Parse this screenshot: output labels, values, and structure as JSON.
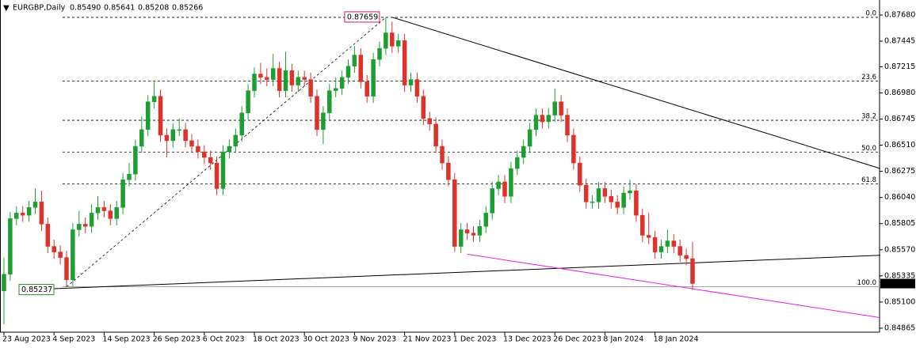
{
  "header": {
    "symbol": "EURGBP,Daily",
    "ohlc": [
      "0.85490",
      "0.85641",
      "0.85208",
      "0.85266"
    ]
  },
  "chart_data": {
    "type": "candlestick",
    "categories": [
      "23 Aug 2023",
      null,
      null,
      null,
      null,
      null,
      null,
      null,
      "4 Sep 2023",
      null,
      null,
      null,
      null,
      null,
      null,
      null,
      "14 Sep 2023",
      null,
      null,
      null,
      null,
      null,
      null,
      null,
      "26 Sep 2023",
      null,
      null,
      null,
      null,
      null,
      null,
      null,
      "6 Oct 2023",
      null,
      null,
      null,
      null,
      null,
      null,
      null,
      "18 Oct 2023",
      null,
      null,
      null,
      null,
      null,
      null,
      null,
      "30 Oct 2023",
      null,
      null,
      null,
      null,
      null,
      null,
      null,
      "9 Nov 2023",
      null,
      null,
      null,
      null,
      null,
      null,
      null,
      "21 Nov 2023",
      null,
      null,
      null,
      null,
      null,
      null,
      null,
      "1 Dec 2023",
      null,
      null,
      null,
      null,
      null,
      null,
      null,
      "13 Dec 2023",
      null,
      null,
      null,
      null,
      null,
      null,
      null,
      "26 Dec 2023",
      null,
      null,
      null,
      null,
      null,
      null,
      null,
      "8 Jan 2024",
      null,
      null,
      null,
      null,
      null,
      null,
      null,
      "18 Jan 2024",
      null,
      null,
      null,
      null,
      null,
      null
    ],
    "open": [
      0.852,
      0.8535,
      0.8585,
      0.859,
      0.8588,
      0.8595,
      0.86,
      0.858,
      0.856,
      0.8555,
      0.855,
      0.853,
      0.8575,
      0.858,
      0.8578,
      0.859,
      0.8595,
      0.8592,
      0.8585,
      0.8595,
      0.862,
      0.8625,
      0.865,
      0.8665,
      0.869,
      0.8695,
      0.866,
      0.8655,
      0.8665,
      0.8665,
      0.8655,
      0.865,
      0.8645,
      0.864,
      0.8635,
      0.8612,
      0.8645,
      0.865,
      0.866,
      0.868,
      0.87,
      0.8715,
      0.8712,
      0.871,
      0.872,
      0.87,
      0.8718,
      0.8705,
      0.8712,
      0.871,
      0.8695,
      0.8665,
      0.868,
      0.87,
      0.8702,
      0.8712,
      0.8722,
      0.8732,
      0.8708,
      0.8695,
      0.8728,
      0.8738,
      0.8752,
      0.874,
      0.8745,
      0.8705,
      0.871,
      0.8695,
      0.8675,
      0.867,
      0.865,
      0.8635,
      0.862,
      0.856,
      0.8575,
      0.8572,
      0.857,
      0.8578,
      0.859,
      0.8612,
      0.8618,
      0.8605,
      0.863,
      0.864,
      0.865,
      0.8665,
      0.8678,
      0.8672,
      0.8678,
      0.869,
      0.8678,
      0.866,
      0.8635,
      0.8615,
      0.86,
      0.86,
      0.8612,
      0.8605,
      0.86,
      0.8595,
      0.8608,
      0.861,
      0.8588,
      0.857,
      0.8568,
      0.8555,
      0.856,
      0.8565,
      0.856,
      0.8552,
      0.8549
    ],
    "high": [
      0.855,
      0.8591,
      0.8596,
      0.8596,
      0.8601,
      0.8612,
      0.861,
      0.8586,
      0.8566,
      0.8561,
      0.8556,
      0.8581,
      0.8592,
      0.8586,
      0.8598,
      0.8605,
      0.8601,
      0.8598,
      0.8601,
      0.8626,
      0.8635,
      0.8656,
      0.8677,
      0.8696,
      0.8708,
      0.8701,
      0.8666,
      0.8671,
      0.8675,
      0.8671,
      0.8661,
      0.8656,
      0.8651,
      0.8646,
      0.8641,
      0.8651,
      0.8656,
      0.8666,
      0.8686,
      0.8706,
      0.8721,
      0.8725,
      0.872,
      0.8733,
      0.8726,
      0.8735,
      0.8724,
      0.8718,
      0.8718,
      0.8716,
      0.8701,
      0.8686,
      0.8706,
      0.8712,
      0.8718,
      0.8728,
      0.874,
      0.8738,
      0.8714,
      0.8734,
      0.8744,
      0.87659,
      0.8762,
      0.8751,
      0.8751,
      0.8716,
      0.8716,
      0.8701,
      0.8681,
      0.8676,
      0.8656,
      0.8641,
      0.8626,
      0.8581,
      0.8581,
      0.8578,
      0.8584,
      0.8596,
      0.8618,
      0.8624,
      0.8624,
      0.8636,
      0.8646,
      0.8656,
      0.8671,
      0.8684,
      0.8684,
      0.8684,
      0.8702,
      0.8696,
      0.8684,
      0.8666,
      0.8641,
      0.8621,
      0.8606,
      0.8618,
      0.8618,
      0.8611,
      0.8606,
      0.8614,
      0.862,
      0.8616,
      0.8594,
      0.859,
      0.8574,
      0.8566,
      0.8575,
      0.8571,
      0.8566,
      0.8558,
      0.85641
    ],
    "low": [
      0.849,
      0.8529,
      0.8579,
      0.8582,
      0.8582,
      0.8589,
      0.8574,
      0.8554,
      0.8549,
      0.8544,
      0.85237,
      0.8524,
      0.8569,
      0.8572,
      0.8572,
      0.8584,
      0.8586,
      0.8579,
      0.8579,
      0.8589,
      0.8614,
      0.8619,
      0.8644,
      0.8659,
      0.8684,
      0.8654,
      0.864,
      0.8649,
      0.8659,
      0.8649,
      0.8644,
      0.8639,
      0.8634,
      0.8629,
      0.8606,
      0.8606,
      0.8639,
      0.8644,
      0.8654,
      0.8674,
      0.8694,
      0.8706,
      0.8704,
      0.8704,
      0.8694,
      0.8694,
      0.8699,
      0.8699,
      0.8704,
      0.8689,
      0.8659,
      0.8652,
      0.8674,
      0.8694,
      0.8696,
      0.8706,
      0.8716,
      0.8702,
      0.8689,
      0.8689,
      0.8722,
      0.8732,
      0.8734,
      0.8734,
      0.8699,
      0.8699,
      0.8689,
      0.8669,
      0.8664,
      0.8644,
      0.8629,
      0.8614,
      0.8555,
      0.8554,
      0.8566,
      0.8564,
      0.8564,
      0.8572,
      0.8584,
      0.8606,
      0.8599,
      0.8599,
      0.8624,
      0.8634,
      0.8644,
      0.8659,
      0.8666,
      0.8666,
      0.8672,
      0.8672,
      0.8654,
      0.8629,
      0.8609,
      0.8594,
      0.8594,
      0.8594,
      0.8599,
      0.8594,
      0.8589,
      0.8589,
      0.8602,
      0.8582,
      0.8564,
      0.8562,
      0.8549,
      0.8549,
      0.8554,
      0.8554,
      0.8546,
      0.8543,
      0.85208
    ],
    "close": [
      0.8535,
      0.8585,
      0.859,
      0.8588,
      0.8595,
      0.86,
      0.858,
      0.856,
      0.8555,
      0.855,
      0.853,
      0.8575,
      0.858,
      0.8578,
      0.859,
      0.8595,
      0.8592,
      0.8585,
      0.8595,
      0.862,
      0.8625,
      0.865,
      0.8665,
      0.869,
      0.8695,
      0.866,
      0.8655,
      0.8665,
      0.8665,
      0.8655,
      0.865,
      0.8645,
      0.864,
      0.8635,
      0.8612,
      0.8645,
      0.865,
      0.866,
      0.868,
      0.87,
      0.8715,
      0.8712,
      0.871,
      0.872,
      0.87,
      0.8718,
      0.8705,
      0.8712,
      0.871,
      0.8695,
      0.8665,
      0.868,
      0.87,
      0.8702,
      0.8712,
      0.8722,
      0.8732,
      0.8708,
      0.8695,
      0.8728,
      0.8738,
      0.8752,
      0.874,
      0.8745,
      0.8705,
      0.871,
      0.8695,
      0.8675,
      0.867,
      0.865,
      0.8635,
      0.862,
      0.856,
      0.8575,
      0.8572,
      0.857,
      0.8578,
      0.859,
      0.8612,
      0.8618,
      0.8605,
      0.863,
      0.864,
      0.865,
      0.8665,
      0.8678,
      0.8672,
      0.8678,
      0.869,
      0.8678,
      0.866,
      0.8635,
      0.8615,
      0.86,
      0.86,
      0.8612,
      0.8605,
      0.86,
      0.8595,
      0.8608,
      0.861,
      0.8588,
      0.857,
      0.8568,
      0.8555,
      0.856,
      0.8565,
      0.856,
      0.8552,
      0.8549,
      0.85266
    ],
    "up_color": "#1e9e32",
    "down_color": "#e0302a",
    "ylim": [
      0.84829,
      0.87815
    ],
    "yticks": [
      {
        "value": 0.8768,
        "label": "0.87680"
      },
      {
        "value": 0.87445,
        "label": "0.87445"
      },
      {
        "value": 0.87215,
        "label": "0.87215"
      },
      {
        "value": 0.8698,
        "label": "0.86980"
      },
      {
        "value": 0.86745,
        "label": "0.86745"
      },
      {
        "value": 0.8651,
        "label": "0.86510"
      },
      {
        "value": 0.86275,
        "label": "0.86275"
      },
      {
        "value": 0.8604,
        "label": "0.86040"
      },
      {
        "value": 0.85805,
        "label": "0.85805"
      },
      {
        "value": 0.8557,
        "label": "0.85570"
      },
      {
        "value": 0.85335,
        "label": "0.85335"
      },
      {
        "value": 0.851,
        "label": "0.85100"
      },
      {
        "value": 0.84865,
        "label": "0.84865"
      }
    ],
    "fibonacci": {
      "high": 0.87659,
      "low": 0.85237,
      "from": 10,
      "to": 61,
      "high_color": "#d02050",
      "low_color": "#2a8a2a",
      "levels": [
        {
          "value": 0,
          "label": "0.0"
        },
        {
          "value": 23.6,
          "label": "23.6"
        },
        {
          "value": 38.2,
          "label": "38.2"
        },
        {
          "value": 50,
          "label": "50.0"
        },
        {
          "value": 61.8,
          "label": "61.8"
        },
        {
          "value": 100,
          "label": "100.0"
        }
      ]
    },
    "trendlines": [
      {
        "color": "#000000",
        "from": [
          62,
          0.8766
        ],
        "to": [
          140,
          0.863
        ]
      },
      {
        "color": "#000000",
        "from": [
          8,
          0.8522
        ],
        "to": [
          140,
          0.8552
        ]
      },
      {
        "color": "#e020e0",
        "from": [
          74,
          0.8553
        ],
        "to": [
          140,
          0.8496
        ]
      }
    ]
  }
}
